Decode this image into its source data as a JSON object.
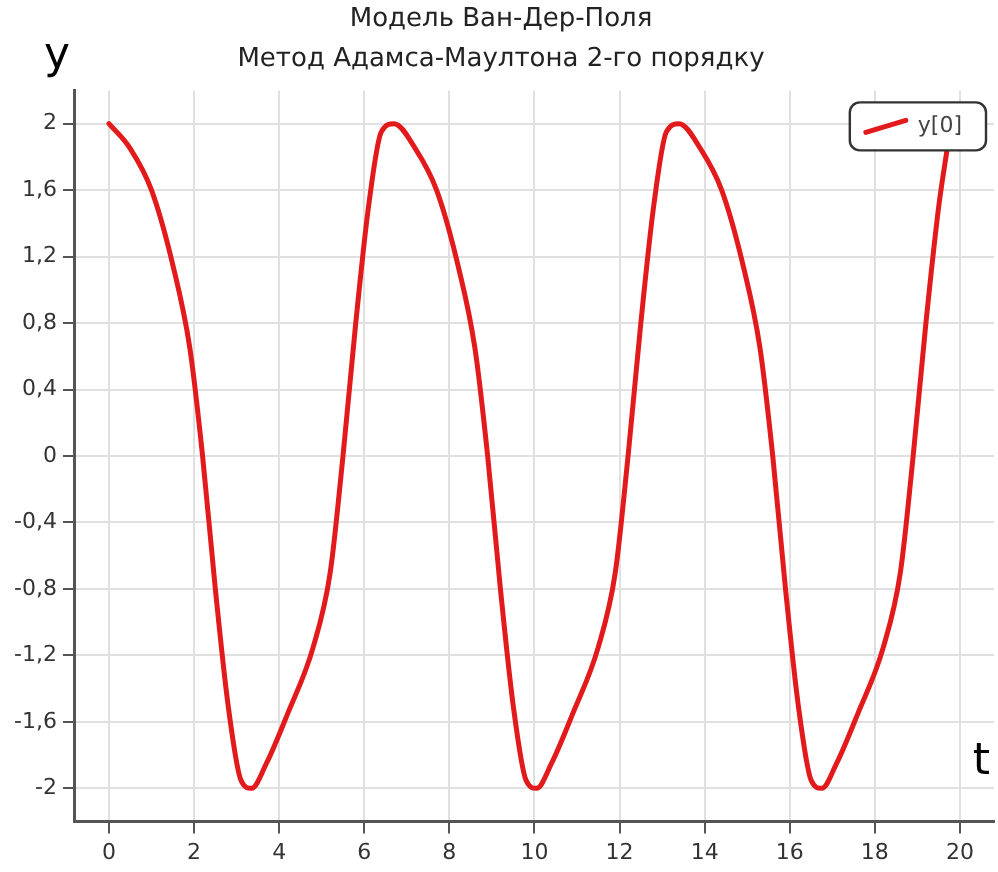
{
  "chart_data": {
    "type": "line",
    "title": "Модель Ван-Дер-Поля",
    "subtitle": "Метод Адамса-Маултона 2-го порядку",
    "xlabel": "t",
    "ylabel": "y",
    "series": [
      {
        "name": "y[0]",
        "color": "#e31a1c",
        "x": [
          0,
          0.5,
          1,
          1.5,
          1.9,
          2.2,
          2.5,
          2.8,
          3.1,
          3.35,
          3.7,
          4.2,
          4.8,
          5.2,
          5.5,
          5.8,
          6.1,
          6.4,
          6.7,
          7.2,
          7.7,
          8.2,
          8.6,
          8.9,
          9.2,
          9.5,
          9.8,
          10.05,
          10.4,
          10.9,
          11.5,
          11.9,
          12.2,
          12.5,
          12.8,
          13.1,
          13.4,
          13.9,
          14.4,
          14.9,
          15.3,
          15.6,
          15.9,
          16.2,
          16.5,
          16.75,
          17.1,
          17.6,
          18.2,
          18.6,
          18.9,
          19.2,
          19.5,
          19.7
        ],
        "values": [
          2,
          1.85,
          1.6,
          1.15,
          0.65,
          0,
          -0.8,
          -1.5,
          -1.95,
          -2,
          -1.85,
          -1.55,
          -1.15,
          -0.7,
          0,
          0.8,
          1.5,
          1.95,
          2,
          1.85,
          1.6,
          1.15,
          0.65,
          0,
          -0.8,
          -1.5,
          -1.95,
          -2,
          -1.85,
          -1.55,
          -1.15,
          -0.7,
          0,
          0.8,
          1.5,
          1.95,
          2,
          1.85,
          1.6,
          1.15,
          0.65,
          0,
          -0.8,
          -1.5,
          -1.95,
          -2,
          -1.85,
          -1.55,
          -1.15,
          -0.7,
          0,
          0.8,
          1.5,
          1.85
        ]
      }
    ],
    "xlim": [
      -0.8,
      20.8
    ],
    "xticks": [
      0,
      2,
      4,
      6,
      8,
      10,
      12,
      14,
      16,
      18,
      20
    ],
    "ylim": [
      -2.2,
      2.2
    ],
    "yticks": [
      -2,
      {
        "value": -1.6,
        "label": "-1,6"
      },
      {
        "value": -1.2,
        "label": "-1,2"
      },
      {
        "value": -0.8,
        "label": "-0,8"
      },
      {
        "value": -0.4,
        "label": "-0,4"
      },
      0,
      {
        "value": 0.4,
        "label": "0,4"
      },
      {
        "value": 0.8,
        "label": "0,8"
      },
      {
        "value": 1.2,
        "label": "1,2"
      },
      {
        "value": 1.6,
        "label": "1,6"
      },
      2
    ],
    "grid": true,
    "legend": "top right",
    "marker": "none",
    "line_style": "solid"
  }
}
